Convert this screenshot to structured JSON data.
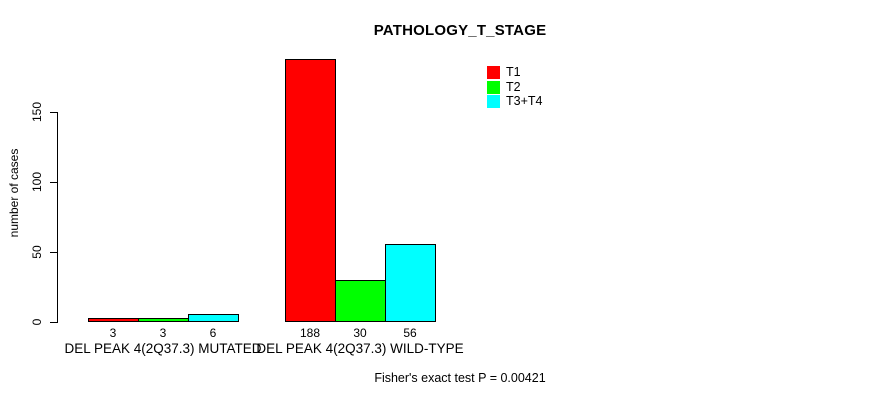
{
  "chart_data": {
    "type": "bar",
    "title": "PATHOLOGY_T_STAGE",
    "ylabel": "number of cases",
    "xlabel": "",
    "yticks": [
      0,
      50,
      100,
      150
    ],
    "ylim": [
      0,
      195
    ],
    "grid": false,
    "legend_position": "top-right",
    "categories": [
      "DEL PEAK 4(2Q37.3) MUTATED",
      "DEL PEAK 4(2Q37.3) WILD-TYPE"
    ],
    "series": [
      {
        "name": "T1",
        "color": "#ff0000",
        "values": [
          3,
          188
        ]
      },
      {
        "name": "T2",
        "color": "#00ff00",
        "values": [
          3,
          30
        ]
      },
      {
        "name": "T3+T4",
        "color": "#00ffff",
        "values": [
          6,
          56
        ]
      }
    ],
    "bar_border_color": "#000000",
    "background_color": "#ffffff",
    "annotation": "Fisher's exact test P = 0.00421"
  }
}
